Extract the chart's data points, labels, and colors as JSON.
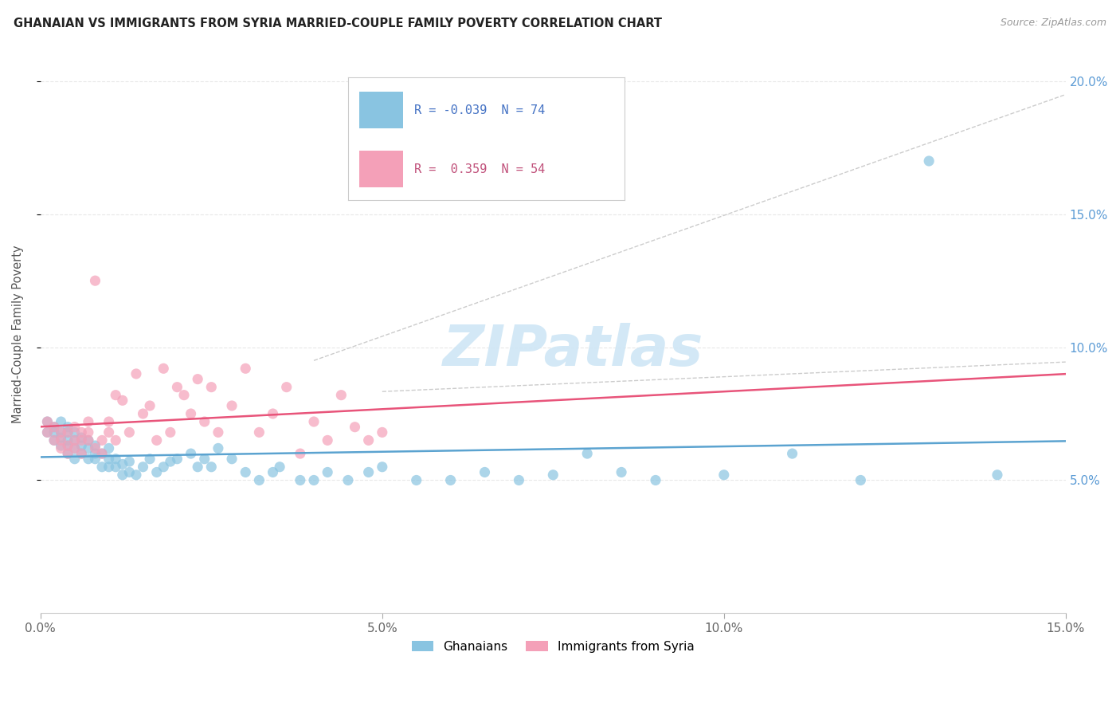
{
  "title": "GHANAIAN VS IMMIGRANTS FROM SYRIA MARRIED-COUPLE FAMILY POVERTY CORRELATION CHART",
  "source": "Source: ZipAtlas.com",
  "ylabel": "Married-Couple Family Poverty",
  "xmin": 0.0,
  "xmax": 0.15,
  "ymin": 0.0,
  "ymax": 0.21,
  "yticks": [
    0.05,
    0.1,
    0.15,
    0.2
  ],
  "ytick_labels": [
    "5.0%",
    "10.0%",
    "15.0%",
    "20.0%"
  ],
  "xticks": [
    0.0,
    0.05,
    0.1,
    0.15
  ],
  "xtick_labels": [
    "0.0%",
    "5.0%",
    "10.0%",
    "15.0%"
  ],
  "R_ghanaian": -0.039,
  "N_ghanaian": 74,
  "R_syria": 0.359,
  "N_syria": 54,
  "color_ghanaian_scatter": "#89c4e1",
  "color_syria_scatter": "#f4a0b8",
  "color_ghanaian_line": "#5ba3d0",
  "color_syria_line": "#e8547a",
  "watermark_color": "#cce5f5",
  "background_color": "#ffffff",
  "grid_color": "#e8e8e8",
  "ghanaian_x": [
    0.001,
    0.001,
    0.002,
    0.002,
    0.002,
    0.003,
    0.003,
    0.003,
    0.003,
    0.004,
    0.004,
    0.004,
    0.004,
    0.004,
    0.005,
    0.005,
    0.005,
    0.005,
    0.006,
    0.006,
    0.006,
    0.007,
    0.007,
    0.007,
    0.008,
    0.008,
    0.008,
    0.009,
    0.009,
    0.01,
    0.01,
    0.01,
    0.011,
    0.011,
    0.012,
    0.012,
    0.013,
    0.013,
    0.014,
    0.015,
    0.016,
    0.017,
    0.018,
    0.019,
    0.02,
    0.022,
    0.023,
    0.024,
    0.025,
    0.026,
    0.028,
    0.03,
    0.032,
    0.034,
    0.035,
    0.038,
    0.04,
    0.042,
    0.045,
    0.048,
    0.05,
    0.055,
    0.06,
    0.065,
    0.07,
    0.075,
    0.08,
    0.085,
    0.09,
    0.1,
    0.11,
    0.12,
    0.13,
    0.14
  ],
  "ghanaian_y": [
    0.072,
    0.068,
    0.065,
    0.068,
    0.07,
    0.063,
    0.066,
    0.068,
    0.072,
    0.06,
    0.063,
    0.065,
    0.068,
    0.07,
    0.058,
    0.062,
    0.065,
    0.068,
    0.06,
    0.063,
    0.066,
    0.058,
    0.062,
    0.065,
    0.058,
    0.06,
    0.063,
    0.055,
    0.06,
    0.055,
    0.058,
    0.062,
    0.055,
    0.058,
    0.052,
    0.056,
    0.053,
    0.057,
    0.052,
    0.055,
    0.058,
    0.053,
    0.055,
    0.057,
    0.058,
    0.06,
    0.055,
    0.058,
    0.055,
    0.062,
    0.058,
    0.053,
    0.05,
    0.053,
    0.055,
    0.05,
    0.05,
    0.053,
    0.05,
    0.053,
    0.055,
    0.05,
    0.05,
    0.053,
    0.05,
    0.052,
    0.06,
    0.053,
    0.05,
    0.052,
    0.06,
    0.05,
    0.17,
    0.052
  ],
  "syria_x": [
    0.001,
    0.001,
    0.002,
    0.002,
    0.003,
    0.003,
    0.003,
    0.004,
    0.004,
    0.004,
    0.005,
    0.005,
    0.005,
    0.006,
    0.006,
    0.006,
    0.007,
    0.007,
    0.007,
    0.008,
    0.008,
    0.009,
    0.009,
    0.01,
    0.01,
    0.011,
    0.011,
    0.012,
    0.013,
    0.014,
    0.015,
    0.016,
    0.017,
    0.018,
    0.019,
    0.02,
    0.021,
    0.022,
    0.023,
    0.024,
    0.025,
    0.026,
    0.028,
    0.03,
    0.032,
    0.034,
    0.036,
    0.038,
    0.04,
    0.042,
    0.044,
    0.046,
    0.048,
    0.05
  ],
  "syria_y": [
    0.068,
    0.072,
    0.065,
    0.07,
    0.062,
    0.065,
    0.068,
    0.06,
    0.063,
    0.068,
    0.062,
    0.065,
    0.07,
    0.06,
    0.065,
    0.068,
    0.065,
    0.068,
    0.072,
    0.062,
    0.125,
    0.06,
    0.065,
    0.068,
    0.072,
    0.065,
    0.082,
    0.08,
    0.068,
    0.09,
    0.075,
    0.078,
    0.065,
    0.092,
    0.068,
    0.085,
    0.082,
    0.075,
    0.088,
    0.072,
    0.085,
    0.068,
    0.078,
    0.092,
    0.068,
    0.075,
    0.085,
    0.06,
    0.072,
    0.065,
    0.082,
    0.07,
    0.065,
    0.068
  ]
}
